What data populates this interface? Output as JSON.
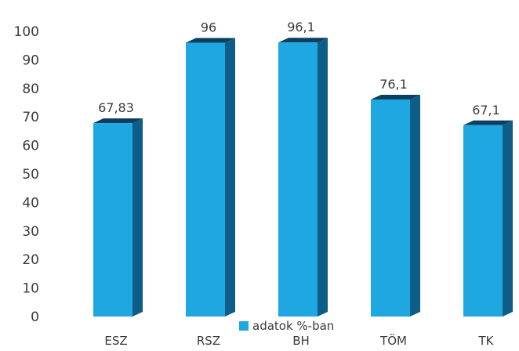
{
  "chart_data": {
    "type": "bar",
    "categories": [
      "ESZ",
      "RSZ",
      "BH",
      "TÖM",
      "TK"
    ],
    "series": [
      {
        "name": "adatok %-ban",
        "values": [
          67.83,
          96,
          96.1,
          76.1,
          67.1
        ],
        "labels": [
          "67,83",
          "96",
          "96,1",
          "76,1",
          "67,1"
        ]
      }
    ],
    "y_ticks": [
      "0",
      "10",
      "20",
      "30",
      "40",
      "50",
      "60",
      "70",
      "80",
      "90",
      "100"
    ],
    "ylim": [
      0,
      100
    ],
    "grid": false,
    "legend_position": "bottom",
    "style": "3d-column",
    "colors": {
      "front": "#1ea7e1",
      "side": "#0e5c88",
      "top": "#0a3f60",
      "legend_swatch": "#1ea7e1",
      "text": "#3a3a3a"
    }
  }
}
